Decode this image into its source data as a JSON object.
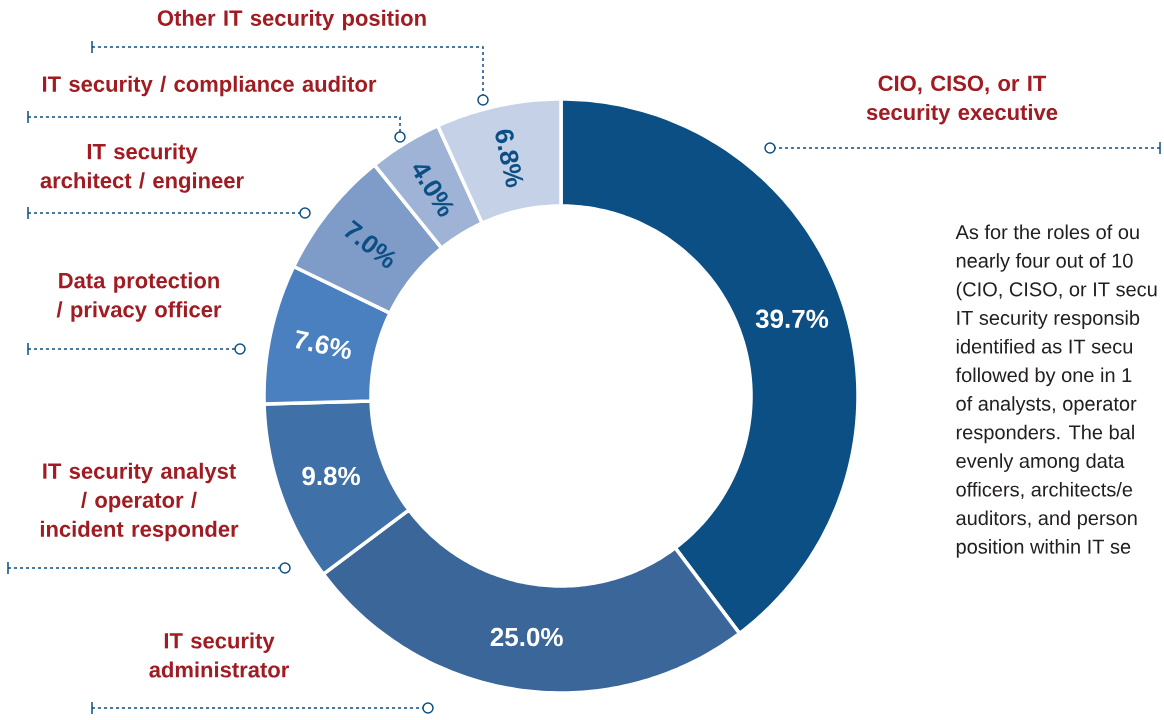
{
  "chart_data": {
    "type": "donut",
    "categories": [
      "CIO, CISO, or IT security executive",
      "IT security administrator",
      "IT security analyst / operator / incident responder",
      "Data protection / privacy officer",
      "IT security architect / engineer",
      "IT security / compliance auditor",
      "Other IT security position"
    ],
    "values": [
      39.7,
      25.0,
      9.8,
      7.6,
      7.0,
      4.0,
      6.8
    ],
    "colors": [
      "#0b4f85",
      "#3a6699",
      "#3f70a8",
      "#4a7fc0",
      "#7f9cc8",
      "#9eb3d6",
      "#c5d1e6"
    ],
    "value_labels": [
      "39.7%",
      "25.0%",
      "9.8%",
      "7.6%",
      "7.0%",
      "4.0%",
      "6.8%"
    ],
    "annotations": [
      "As for the roles of ou",
      "nearly four out of 10",
      "(CIO, CISO, or IT secu",
      "IT security responsib",
      "identified as IT secu",
      "followed by one in 1",
      "of analysts, operator",
      "responders. The bal",
      "evenly among data",
      "officers, architects/e",
      "auditors, and person",
      "position within IT se"
    ]
  }
}
